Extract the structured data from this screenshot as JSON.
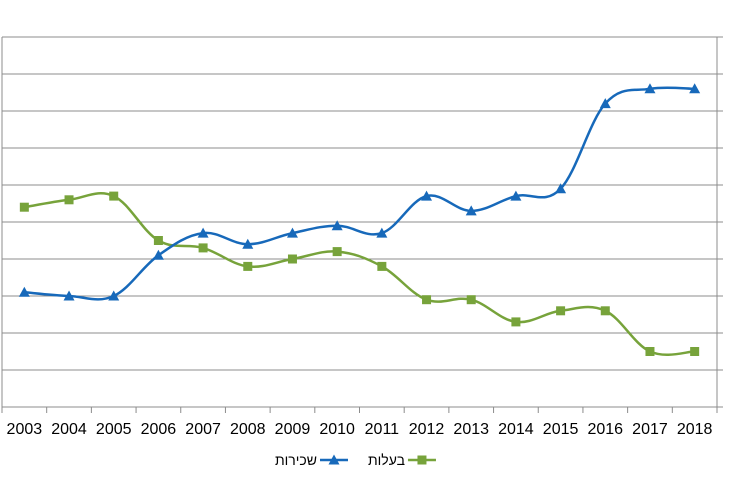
{
  "chart_data": {
    "type": "line",
    "title": "",
    "xlabel": "",
    "ylabel": "",
    "categories": [
      "2003",
      "2004",
      "2005",
      "2006",
      "2007",
      "2008",
      "2009",
      "2010",
      "2011",
      "2012",
      "2013",
      "2014",
      "2015",
      "2016",
      "2017",
      "2018"
    ],
    "ylim": [
      0,
      10
    ],
    "grid": true,
    "legend_position": "bottom",
    "series": [
      {
        "name": "בעלות",
        "color": "#77A33B",
        "marker": "square",
        "values": [
          5.4,
          5.6,
          5.7,
          4.5,
          4.3,
          3.8,
          4.0,
          4.2,
          3.8,
          2.9,
          2.9,
          2.3,
          2.6,
          2.6,
          1.5,
          1.5
        ]
      },
      {
        "name": "שכירות",
        "color": "#1769BA",
        "marker": "triangle",
        "values": [
          3.1,
          3.0,
          3.0,
          4.1,
          4.7,
          4.4,
          4.7,
          4.9,
          4.7,
          5.7,
          5.3,
          5.7,
          5.9,
          8.2,
          8.6,
          8.6
        ]
      }
    ]
  }
}
